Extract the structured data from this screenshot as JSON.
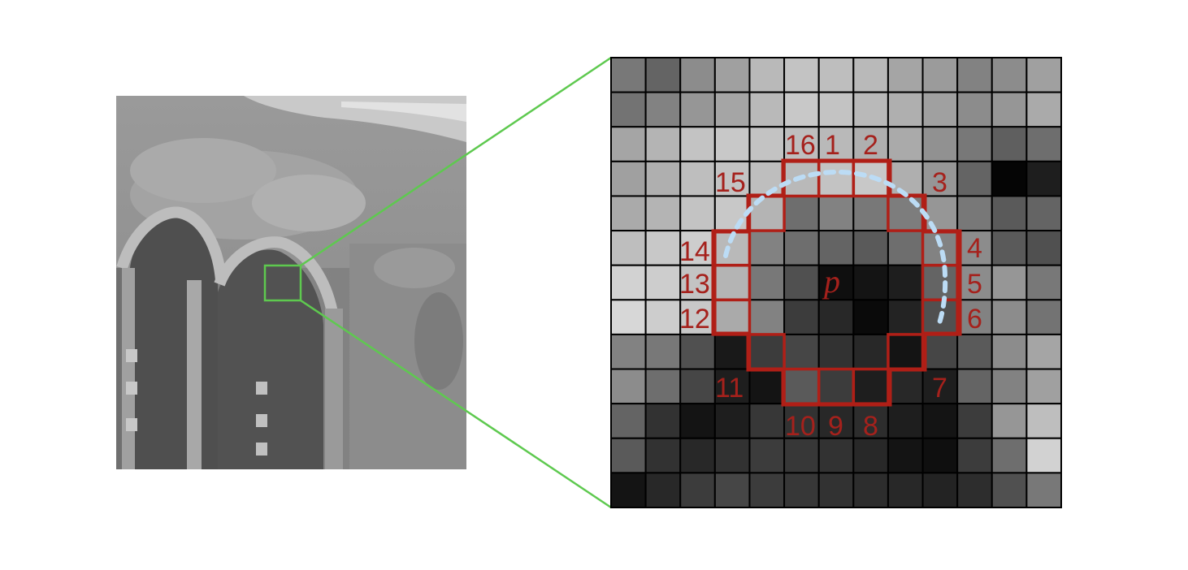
{
  "center_label": "p",
  "circle_labels": [
    "1",
    "2",
    "3",
    "4",
    "5",
    "6",
    "7",
    "8",
    "9",
    "10",
    "11",
    "12",
    "13",
    "14",
    "15",
    "16"
  ],
  "colors": {
    "zoom_lines": "#5ec94f",
    "circle_outline": "#b01f17",
    "label_text": "#a5211c",
    "arc": "#bcdcf5",
    "grid_lines": "#000000"
  },
  "pixel_grid": {
    "rows": 13,
    "cols": 13,
    "gray_levels": [
      [
        120,
        100,
        140,
        160,
        185,
        195,
        190,
        185,
        165,
        155,
        130,
        140,
        160
      ],
      [
        115,
        130,
        150,
        165,
        185,
        200,
        195,
        185,
        175,
        160,
        140,
        150,
        170
      ],
      [
        165,
        180,
        195,
        200,
        195,
        190,
        185,
        175,
        170,
        145,
        120,
        95,
        110
      ],
      [
        160,
        175,
        190,
        195,
        190,
        185,
        195,
        200,
        175,
        150,
        100,
        5,
        30
      ],
      [
        170,
        180,
        195,
        200,
        180,
        110,
        130,
        120,
        125,
        150,
        120,
        90,
        100
      ],
      [
        190,
        200,
        205,
        185,
        130,
        110,
        100,
        90,
        110,
        130,
        140,
        90,
        80
      ],
      [
        210,
        205,
        195,
        180,
        120,
        80,
        15,
        20,
        30,
        100,
        140,
        150,
        120
      ],
      [
        215,
        205,
        200,
        170,
        130,
        60,
        40,
        10,
        35,
        80,
        130,
        140,
        115
      ],
      [
        130,
        120,
        80,
        25,
        60,
        70,
        50,
        40,
        20,
        70,
        90,
        140,
        165
      ],
      [
        140,
        110,
        70,
        30,
        20,
        90,
        60,
        30,
        40,
        30,
        100,
        130,
        160
      ],
      [
        100,
        50,
        20,
        30,
        55,
        50,
        40,
        45,
        30,
        20,
        60,
        150,
        190
      ],
      [
        90,
        50,
        40,
        50,
        60,
        55,
        50,
        40,
        20,
        15,
        60,
        110,
        210
      ],
      [
        20,
        40,
        60,
        70,
        60,
        55,
        50,
        45,
        40,
        35,
        45,
        80,
        120
      ]
    ],
    "circle_cells": [
      [
        3,
        5
      ],
      [
        3,
        6
      ],
      [
        3,
        7
      ],
      [
        4,
        8
      ],
      [
        5,
        9
      ],
      [
        6,
        9
      ],
      [
        7,
        9
      ],
      [
        8,
        8
      ],
      [
        9,
        7
      ],
      [
        9,
        6
      ],
      [
        9,
        5
      ],
      [
        8,
        4
      ],
      [
        7,
        3
      ],
      [
        6,
        3
      ],
      [
        5,
        3
      ],
      [
        4,
        4
      ]
    ]
  }
}
